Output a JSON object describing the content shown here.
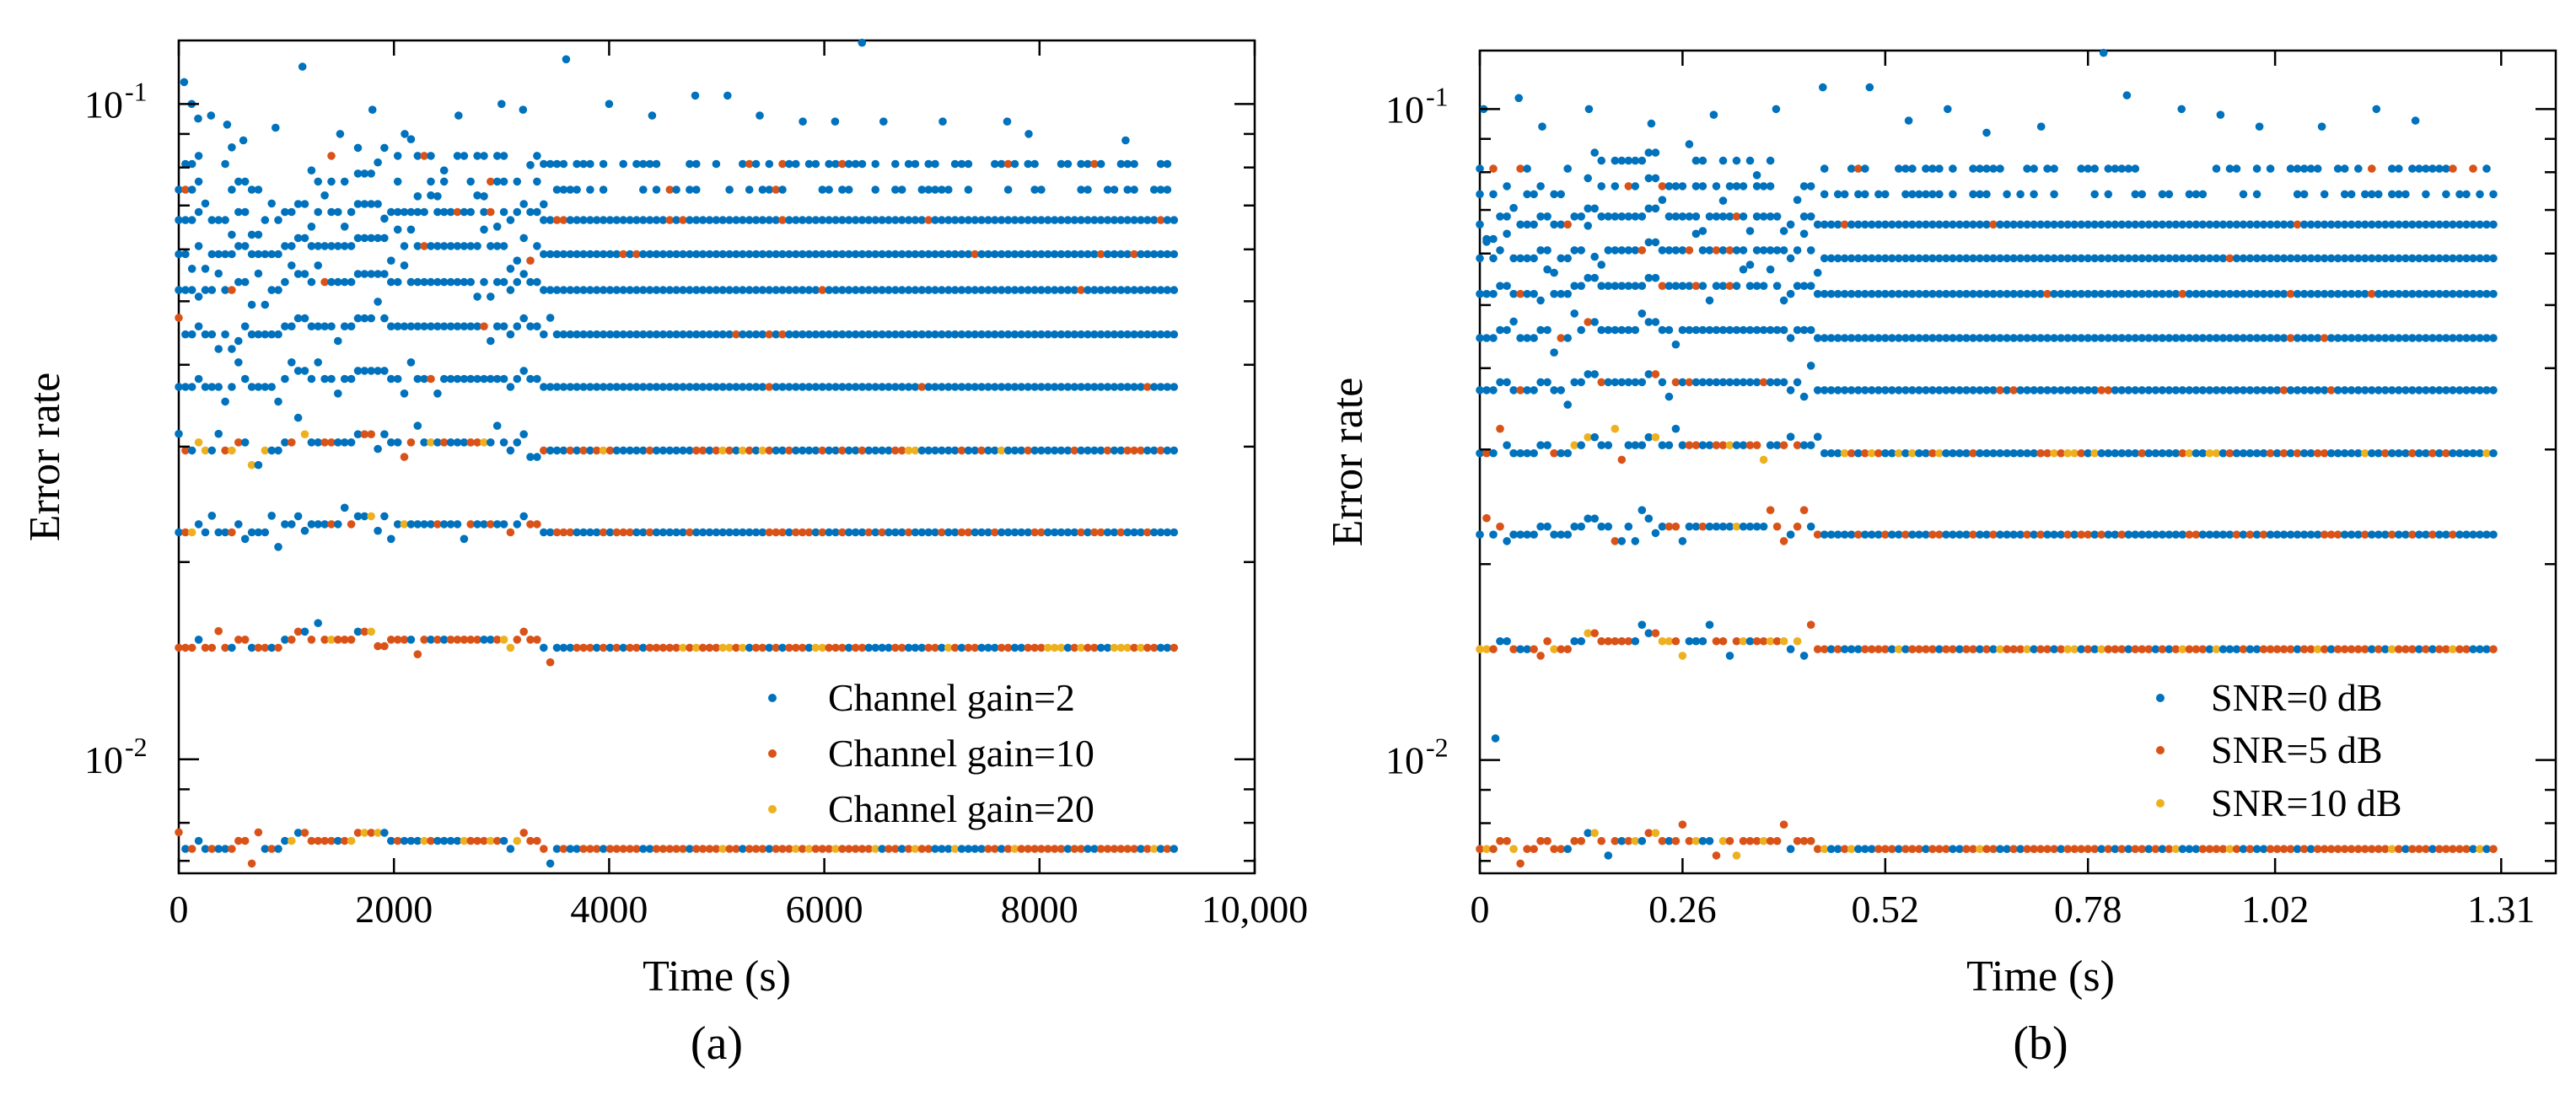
{
  "colors": {
    "series_1": "#0072BD",
    "series_2": "#D95319",
    "series_3": "#EDB120"
  },
  "chart_data": [
    {
      "type": "scatter",
      "panel_label": "(a)",
      "xlabel": "Time (s)",
      "ylabel": "Error rate",
      "yscale": "log",
      "xlim": [
        0,
        10000
      ],
      "ylim": [
        0.0067,
        0.125
      ],
      "xticks": [
        0,
        2000,
        4000,
        6000,
        8000,
        10000
      ],
      "xtick_labels": [
        "0",
        "2000",
        "4000",
        "6000",
        "8000",
        "10,000"
      ],
      "yticks": [
        0.01,
        0.1
      ],
      "ytick_labels": [
        {
          "base": "10",
          "exp": "-2"
        },
        {
          "base": "10",
          "exp": "-1"
        }
      ],
      "x_end": 9250,
      "transition_x": 3500,
      "early_bumps": [
        [
          0,
          0
        ],
        [
          200,
          0.15
        ],
        [
          400,
          0
        ],
        [
          600,
          0.25
        ],
        [
          800,
          -0.1
        ],
        [
          1000,
          0.2
        ],
        [
          1150,
          0.55
        ],
        [
          1300,
          0.15
        ],
        [
          1500,
          0.15
        ],
        [
          1700,
          0.45
        ],
        [
          1850,
          0.6
        ],
        [
          2000,
          0.2
        ],
        [
          2200,
          0.2
        ],
        [
          2500,
          0.25
        ],
        [
          3000,
          0.3
        ],
        [
          3100,
          0.0
        ],
        [
          3200,
          0.45
        ],
        [
          3300,
          0.15
        ],
        [
          3500,
          0.0
        ]
      ],
      "levels": [
        0.0073,
        0.0148,
        0.0222,
        0.0296,
        0.037,
        0.0445,
        0.052,
        0.059,
        0.0665,
        0.074,
        0.081
      ],
      "outliers": [
        [
          50,
          0.108
        ],
        [
          120,
          0.1
        ],
        [
          180,
          0.095
        ],
        [
          300,
          0.096
        ],
        [
          450,
          0.093
        ],
        [
          600,
          0.088
        ],
        [
          900,
          0.092
        ],
        [
          1150,
          0.114
        ],
        [
          1500,
          0.09
        ],
        [
          1800,
          0.098
        ],
        [
          2100,
          0.09
        ],
        [
          2600,
          0.096
        ],
        [
          3000,
          0.1
        ],
        [
          3200,
          0.098
        ],
        [
          3600,
          0.117
        ],
        [
          4000,
          0.1
        ],
        [
          4400,
          0.096
        ],
        [
          4800,
          0.103
        ],
        [
          5100,
          0.103
        ],
        [
          5400,
          0.096
        ],
        [
          5800,
          0.094
        ],
        [
          6100,
          0.094
        ],
        [
          6350,
          0.124
        ],
        [
          6550,
          0.094
        ],
        [
          7100,
          0.094
        ],
        [
          7700,
          0.094
        ],
        [
          7900,
          0.09
        ],
        [
          8800,
          0.088
        ]
      ],
      "series": [
        {
          "name": "Channel gain=2",
          "color": "#0072BD"
        },
        {
          "name": "Channel gain=10",
          "color": "#D95319"
        },
        {
          "name": "Channel gain=20",
          "color": "#EDB120"
        }
      ]
    },
    {
      "type": "scatter",
      "panel_label": "(b)",
      "xlabel": "Time (s)",
      "ylabel": "Error rate",
      "yscale": "log",
      "xlim": [
        0,
        1.38
      ],
      "ylim": [
        0.0067,
        0.123
      ],
      "xticks": [
        0,
        0.26,
        0.52,
        0.78,
        1.02,
        1.31
      ],
      "xtick_labels": [
        "0",
        "0.26",
        "0.52",
        "0.78",
        "1.02",
        "1.31"
      ],
      "yticks": [
        0.01,
        0.1
      ],
      "ytick_labels": [
        {
          "base": "10",
          "exp": "-2"
        },
        {
          "base": "10",
          "exp": "-1"
        }
      ],
      "x_end": 1.3,
      "transition_x": 0.44,
      "early_bumps": [
        [
          0,
          0
        ],
        [
          0.03,
          0.2
        ],
        [
          0.06,
          0
        ],
        [
          0.08,
          0.25
        ],
        [
          0.11,
          -0.1
        ],
        [
          0.14,
          0.6
        ],
        [
          0.16,
          0.2
        ],
        [
          0.2,
          0.15
        ],
        [
          0.22,
          0.45
        ],
        [
          0.25,
          0.2
        ],
        [
          0.28,
          0.2
        ],
        [
          0.32,
          0.25
        ],
        [
          0.38,
          0.35
        ],
        [
          0.4,
          0.0
        ],
        [
          0.41,
          0.45
        ],
        [
          0.43,
          0.15
        ],
        [
          0.44,
          0.0
        ]
      ],
      "levels": [
        0.0073,
        0.0148,
        0.0222,
        0.0296,
        0.037,
        0.0445,
        0.052,
        0.059,
        0.0665,
        0.074,
        0.081
      ],
      "outliers": [
        [
          0.005,
          0.1
        ],
        [
          0.02,
          0.0108
        ],
        [
          0.05,
          0.104
        ],
        [
          0.08,
          0.094
        ],
        [
          0.14,
          0.1
        ],
        [
          0.22,
          0.095
        ],
        [
          0.3,
          0.098
        ],
        [
          0.38,
          0.1
        ],
        [
          0.44,
          0.108
        ],
        [
          0.5,
          0.108
        ],
        [
          0.55,
          0.096
        ],
        [
          0.6,
          0.1
        ],
        [
          0.65,
          0.092
        ],
        [
          0.72,
          0.094
        ],
        [
          0.8,
          0.122
        ],
        [
          0.83,
          0.105
        ],
        [
          0.9,
          0.1
        ],
        [
          0.95,
          0.098
        ],
        [
          1.0,
          0.094
        ],
        [
          1.08,
          0.094
        ],
        [
          1.15,
          0.1
        ],
        [
          1.2,
          0.096
        ]
      ],
      "series": [
        {
          "name": "SNR=0 dB",
          "color": "#0072BD"
        },
        {
          "name": "SNR=5 dB",
          "color": "#D95319"
        },
        {
          "name": "SNR=10 dB",
          "color": "#EDB120"
        }
      ]
    }
  ]
}
